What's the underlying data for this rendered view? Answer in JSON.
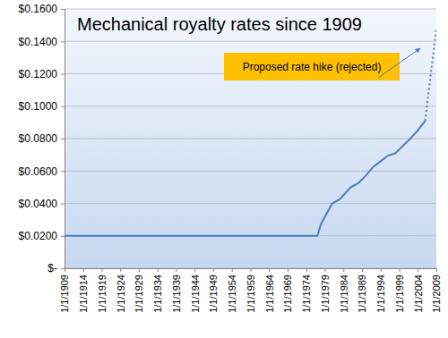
{
  "chart_data": {
    "type": "line",
    "title": "Mechanical royalty rates since 1909",
    "annotation": "Proposed rate hike (rejected)",
    "series": [
      {
        "color": "#4a7ebb",
        "line_style": "solid",
        "x": [
          1909,
          1977,
          1978,
          1981,
          1983,
          1986,
          1988,
          1990,
          1992,
          1994,
          1996,
          1998,
          2000,
          2002,
          2004,
          2006
        ],
        "values": [
          0.02,
          0.02,
          0.0275,
          0.04,
          0.0425,
          0.05,
          0.0525,
          0.057,
          0.0625,
          0.066,
          0.0695,
          0.071,
          0.0755,
          0.08,
          0.085,
          0.091
        ]
      },
      {
        "color": "#4a7ebb",
        "line_style": "dotted",
        "x": [
          2006,
          2009
        ],
        "values": [
          0.091,
          0.148
        ]
      }
    ],
    "xlim": [
      1909,
      2009
    ],
    "xticks": [
      {
        "value": 1909,
        "label": "1/1/1909"
      },
      {
        "value": 1914,
        "label": "1/1/1914"
      },
      {
        "value": 1919,
        "label": "1/1/1919"
      },
      {
        "value": 1924,
        "label": "1/1/1924"
      },
      {
        "value": 1929,
        "label": "1/1/1929"
      },
      {
        "value": 1934,
        "label": "1/1/1934"
      },
      {
        "value": 1939,
        "label": "1/1/1939"
      },
      {
        "value": 1944,
        "label": "1/1/1944"
      },
      {
        "value": 1949,
        "label": "1/1/1949"
      },
      {
        "value": 1954,
        "label": "1/1/1954"
      },
      {
        "value": 1959,
        "label": "1/1/1959"
      },
      {
        "value": 1964,
        "label": "1/1/1964"
      },
      {
        "value": 1969,
        "label": "1/1/1969"
      },
      {
        "value": 1974,
        "label": "1/1/1974"
      },
      {
        "value": 1979,
        "label": "1/1/1979"
      },
      {
        "value": 1984,
        "label": "1/1/1984"
      },
      {
        "value": 1989,
        "label": "1/1/1989"
      },
      {
        "value": 1994,
        "label": "1/1/1994"
      },
      {
        "value": 1999,
        "label": "1/1/1999"
      },
      {
        "value": 2004,
        "label": "1/1/2004"
      },
      {
        "value": 2009,
        "label": "1/1/2009"
      }
    ],
    "ylim": [
      0,
      0.16
    ],
    "yticks": [
      {
        "value": 0,
        "label": "$-"
      },
      {
        "value": 0.02,
        "label": "$0.0200"
      },
      {
        "value": 0.04,
        "label": "$0.0400"
      },
      {
        "value": 0.06,
        "label": "$0.0600"
      },
      {
        "value": 0.08,
        "label": "$0.0800"
      },
      {
        "value": 0.1,
        "label": "$0.1000"
      },
      {
        "value": 0.12,
        "label": "$0.1200"
      },
      {
        "value": 0.14,
        "label": "$0.1400"
      },
      {
        "value": 0.16,
        "label": "$0.1600"
      }
    ],
    "grid": true
  }
}
